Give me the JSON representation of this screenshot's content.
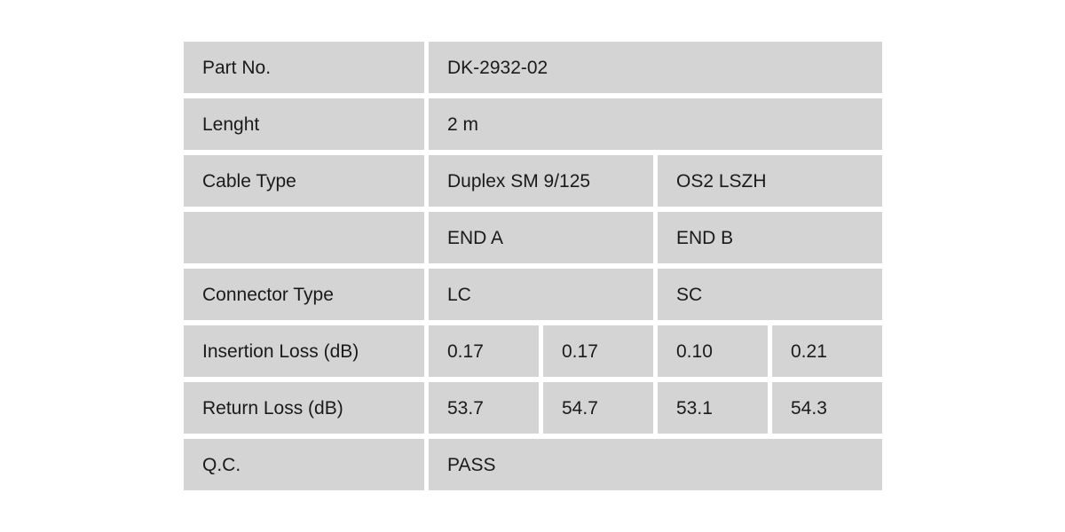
{
  "colors": {
    "page_bg": "#ffffff",
    "cell_bg": "#d3d4d3",
    "text": "#1a1a1a"
  },
  "table": {
    "rows": [
      {
        "label": "Part No.",
        "cells": [
          {
            "text": "DK-2932-02"
          }
        ]
      },
      {
        "label": "Lenght",
        "cells": [
          {
            "text": "2 m"
          }
        ]
      },
      {
        "label": "Cable Type",
        "cells": [
          {
            "text": "Duplex SM 9/125"
          },
          {
            "text": "OS2 LSZH"
          }
        ]
      },
      {
        "label": "",
        "cells": [
          {
            "text": "END A"
          },
          {
            "text": "END B"
          }
        ]
      },
      {
        "label": "Connector Type",
        "cells": [
          {
            "text": "LC"
          },
          {
            "text": "SC"
          }
        ]
      },
      {
        "label": "Insertion Loss (dB)",
        "cells": [
          {
            "text": "0.17"
          },
          {
            "text": "0.17"
          },
          {
            "text": "0.10"
          },
          {
            "text": "0.21"
          }
        ]
      },
      {
        "label": "Return Loss (dB)",
        "cells": [
          {
            "text": "53.7"
          },
          {
            "text": "54.7"
          },
          {
            "text": "53.1"
          },
          {
            "text": "54.3"
          }
        ]
      },
      {
        "label": "Q.C.",
        "cells": [
          {
            "text": "PASS"
          }
        ]
      }
    ]
  }
}
